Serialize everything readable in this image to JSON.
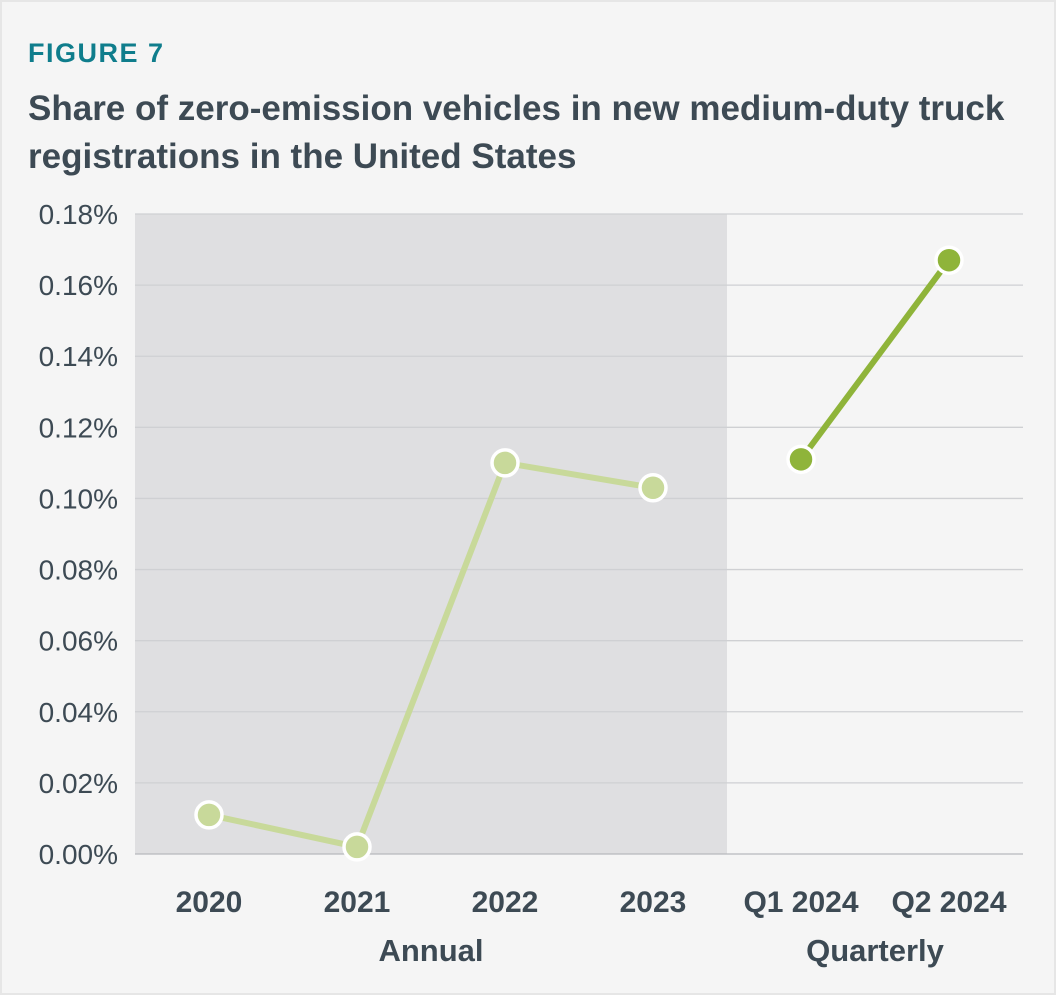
{
  "figure_label": "FIGURE 7",
  "title": "Share of zero-emission vehicles in new medium-duty truck registrations in the United States",
  "colors": {
    "annual_line": "#c8d99a",
    "quarterly_line": "#8fb43a",
    "shade": "#dfdfe1",
    "grid": "#cfd0d3",
    "text": "#3d4a54",
    "figure_label": "#0f7d8c"
  },
  "chart_data": {
    "type": "line",
    "categories": [
      "2020",
      "2021",
      "2022",
      "2023",
      "Q1 2024",
      "Q2 2024"
    ],
    "groups": [
      {
        "label": "Annual",
        "categories": [
          "2020",
          "2021",
          "2022",
          "2023"
        ]
      },
      {
        "label": "Quarterly",
        "categories": [
          "Q1 2024",
          "Q2 2024"
        ]
      }
    ],
    "series": [
      {
        "values": [
          0.011,
          0.002,
          0.11,
          0.103,
          null,
          null
        ]
      },
      {
        "values": [
          null,
          null,
          null,
          null,
          0.111,
          0.167
        ]
      }
    ],
    "ylim": [
      0,
      0.18
    ],
    "yticks": [
      "0.00%",
      "0.02%",
      "0.04%",
      "0.06%",
      "0.08%",
      "0.10%",
      "0.12%",
      "0.14%",
      "0.16%",
      "0.18%"
    ],
    "grid": true,
    "shaded_region": "Annual",
    "xlabel": "",
    "ylabel": ""
  }
}
